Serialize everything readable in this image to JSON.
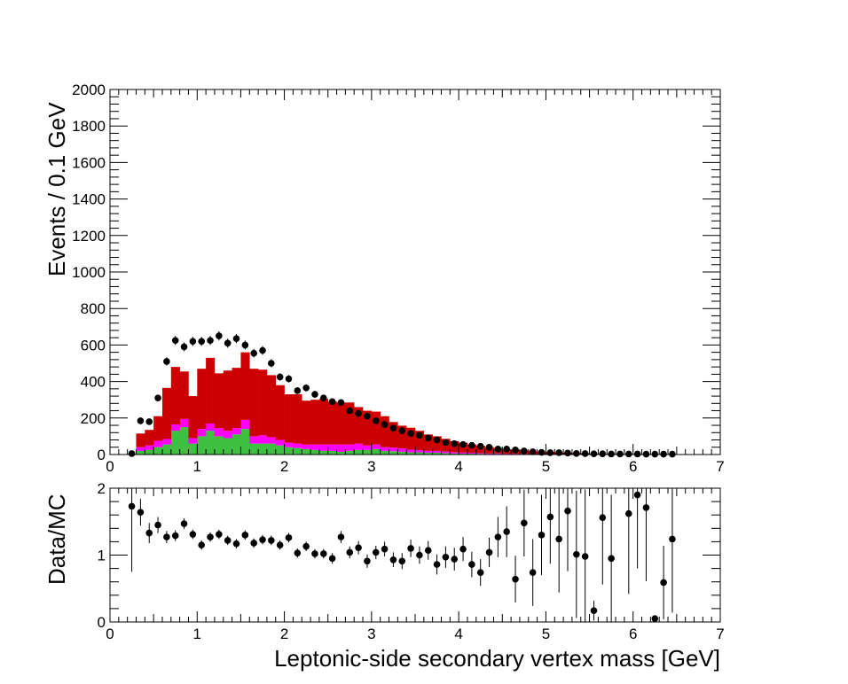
{
  "chart_data": [
    {
      "type": "bar",
      "panel": "main",
      "ylabel": "Events / 0.1 GeV",
      "xlim": [
        0,
        7
      ],
      "ylim": [
        0,
        2000
      ],
      "x_ticks": [
        "0",
        "1",
        "2",
        "3",
        "4",
        "5",
        "6",
        "7"
      ],
      "y_ticks": [
        "0",
        "200",
        "400",
        "600",
        "800",
        "1000",
        "1200",
        "1400",
        "1600",
        "1800",
        "2000"
      ],
      "bin_width": 0.1,
      "bin_edges": [
        0.3,
        6.5
      ],
      "stack": [
        {
          "color": "#3fbf3f",
          "values": [
            20,
            25,
            40,
            55,
            130,
            150,
            60,
            100,
            130,
            100,
            90,
            110,
            140,
            60,
            60,
            60,
            50,
            40,
            35,
            30,
            25,
            20,
            20,
            15,
            20,
            25,
            25,
            30,
            20,
            18,
            15,
            12,
            12,
            10,
            10,
            8,
            6,
            5,
            5,
            4,
            3,
            3,
            2,
            2,
            2,
            1,
            1,
            1,
            1,
            1,
            1,
            1,
            0,
            0,
            0,
            0,
            0,
            0,
            0,
            0,
            0,
            0
          ]
        },
        {
          "color": "#ff00ff",
          "values": [
            20,
            25,
            35,
            30,
            35,
            45,
            30,
            40,
            40,
            45,
            40,
            35,
            50,
            40,
            45,
            35,
            30,
            25,
            25,
            25,
            30,
            35,
            35,
            40,
            35,
            35,
            25,
            25,
            20,
            20,
            18,
            15,
            12,
            10,
            10,
            8,
            7,
            6,
            5,
            4,
            3,
            3,
            2,
            2,
            2,
            1,
            1,
            1,
            1,
            1,
            1,
            1,
            0,
            0,
            0,
            0,
            0,
            0,
            0,
            0,
            0,
            0
          ]
        },
        {
          "color": "#cc0000",
          "values": [
            75,
            85,
            135,
            280,
            315,
            260,
            230,
            330,
            360,
            300,
            330,
            330,
            370,
            370,
            360,
            340,
            300,
            265,
            270,
            240,
            245,
            250,
            235,
            230,
            230,
            200,
            190,
            180,
            170,
            140,
            125,
            120,
            106,
            90,
            80,
            70,
            60,
            54,
            45,
            40,
            35,
            30,
            25,
            22,
            18,
            16,
            14,
            12,
            10,
            8,
            6,
            5,
            5,
            4,
            3,
            3,
            2,
            2,
            1,
            1,
            1,
            1
          ]
        }
      ],
      "data_points": {
        "x": [
          0.25,
          0.35,
          0.45,
          0.55,
          0.65,
          0.75,
          0.85,
          0.95,
          1.05,
          1.15,
          1.25,
          1.35,
          1.45,
          1.55,
          1.65,
          1.75,
          1.85,
          1.95,
          2.05,
          2.15,
          2.25,
          2.35,
          2.45,
          2.55,
          2.65,
          2.75,
          2.85,
          2.95,
          3.05,
          3.15,
          3.25,
          3.35,
          3.45,
          3.55,
          3.65,
          3.75,
          3.85,
          3.95,
          4.05,
          4.15,
          4.25,
          4.35,
          4.45,
          4.55,
          4.65,
          4.75,
          4.85,
          4.95,
          5.05,
          5.15,
          5.25,
          5.35,
          5.45,
          5.55,
          5.65,
          5.75,
          5.85,
          5.95,
          6.05,
          6.15,
          6.25,
          6.35,
          6.45
        ],
        "y": [
          5,
          185,
          180,
          310,
          510,
          625,
          590,
          620,
          620,
          625,
          650,
          610,
          635,
          600,
          555,
          570,
          500,
          425,
          415,
          350,
          365,
          330,
          310,
          290,
          285,
          240,
          225,
          210,
          185,
          165,
          145,
          130,
          115,
          105,
          90,
          80,
          65,
          60,
          55,
          50,
          45,
          40,
          30,
          30,
          25,
          20,
          15,
          12,
          10,
          10,
          8,
          6,
          5,
          4,
          4,
          3,
          3,
          3,
          3,
          2,
          2,
          2,
          2
        ]
      }
    },
    {
      "type": "scatter",
      "panel": "ratio",
      "xlabel": "Leptonic-side secondary vertex mass [GeV]",
      "ylabel": "Data/MC",
      "xlim": [
        0,
        7
      ],
      "ylim": [
        0,
        2
      ],
      "x_ticks": [
        "0",
        "1",
        "2",
        "3",
        "4",
        "5",
        "6",
        "7"
      ],
      "y_ticks": [
        "0",
        "1",
        "2"
      ],
      "x": [
        0.25,
        0.35,
        0.45,
        0.55,
        0.65,
        0.75,
        0.85,
        0.95,
        1.05,
        1.15,
        1.25,
        1.35,
        1.45,
        1.55,
        1.65,
        1.75,
        1.85,
        1.95,
        2.05,
        2.15,
        2.25,
        2.35,
        2.45,
        2.55,
        2.65,
        2.75,
        2.85,
        2.95,
        3.05,
        3.15,
        3.25,
        3.35,
        3.45,
        3.55,
        3.65,
        3.75,
        3.85,
        3.95,
        4.05,
        4.15,
        4.25,
        4.35,
        4.45,
        4.55,
        4.65,
        4.75,
        4.85,
        4.95,
        5.05,
        5.15,
        5.25,
        5.35,
        5.45,
        5.55,
        5.65,
        5.75,
        5.95,
        6.05,
        6.15,
        6.25,
        6.35,
        6.45
      ],
      "y": [
        1.73,
        1.64,
        1.33,
        1.45,
        1.27,
        1.29,
        1.47,
        1.31,
        1.15,
        1.27,
        1.31,
        1.22,
        1.17,
        1.3,
        1.18,
        1.23,
        1.22,
        1.15,
        1.26,
        1.03,
        1.13,
        1.02,
        1.02,
        0.95,
        1.27,
        1.04,
        1.11,
        0.91,
        1.04,
        1.09,
        0.93,
        0.91,
        1.1,
        1.0,
        1.07,
        0.86,
        0.97,
        0.94,
        1.09,
        0.86,
        0.74,
        1.04,
        1.27,
        1.35,
        0.64,
        1.48,
        0.74,
        1.3,
        1.57,
        1.24,
        1.66,
        1.01,
        0.98,
        0.17,
        1.56,
        0.95,
        1.62,
        1.9,
        1.71,
        0.05,
        0.59,
        1.24
      ],
      "err": [
        0.98,
        0.2,
        0.15,
        0.12,
        0.09,
        0.08,
        0.08,
        0.07,
        0.07,
        0.07,
        0.07,
        0.07,
        0.07,
        0.07,
        0.07,
        0.07,
        0.07,
        0.07,
        0.07,
        0.07,
        0.07,
        0.07,
        0.07,
        0.08,
        0.09,
        0.09,
        0.1,
        0.1,
        0.1,
        0.11,
        0.11,
        0.12,
        0.13,
        0.13,
        0.14,
        0.15,
        0.16,
        0.17,
        0.18,
        0.19,
        0.2,
        0.22,
        0.3,
        0.38,
        0.35,
        0.5,
        0.5,
        0.6,
        0.7,
        0.8,
        0.9,
        0.95,
        1.0,
        0.15,
        1.0,
        0.95,
        1.2,
        1.1,
        1.1,
        0.05,
        0.55,
        1.1
      ]
    }
  ]
}
